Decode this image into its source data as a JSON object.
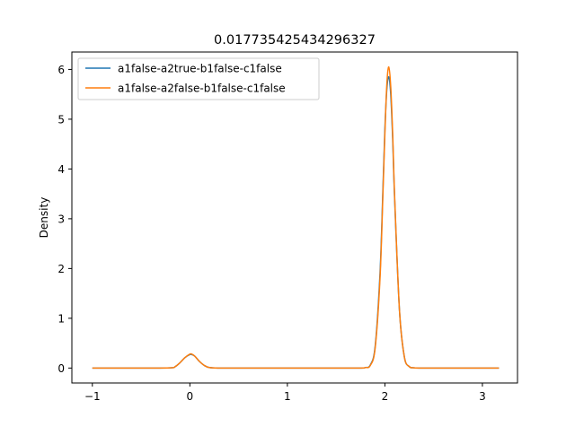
{
  "chart_data": {
    "type": "line",
    "title": "0.017735425434296327",
    "xlabel": "",
    "ylabel": "Density",
    "xlim": [
      -1.21,
      3.36
    ],
    "ylim": [
      -0.3,
      6.35
    ],
    "x_ticks": [
      -1,
      0,
      1,
      2,
      3
    ],
    "x_tick_labels": [
      "−1",
      "0",
      "1",
      "2",
      "3"
    ],
    "y_ticks": [
      0,
      1,
      2,
      3,
      4,
      5,
      6
    ],
    "y_tick_labels": [
      "0",
      "1",
      "2",
      "3",
      "4",
      "5",
      "6"
    ],
    "grid": false,
    "legend_position": "top-left",
    "series": [
      {
        "name": "a1false-a2true-b1false-c1false",
        "color": "#1f77b4",
        "x": [
          -1.0,
          -0.5,
          -0.2,
          -0.15,
          -0.1,
          -0.05,
          0.0,
          0.02,
          0.05,
          0.1,
          0.15,
          0.2,
          0.3,
          0.5,
          1.0,
          1.5,
          1.75,
          1.8,
          1.85,
          1.9,
          1.95,
          1.98,
          2.0,
          2.02,
          2.04,
          2.06,
          2.08,
          2.1,
          2.15,
          2.2,
          2.25,
          2.3,
          2.4,
          2.6,
          3.0,
          3.17
        ],
        "density": [
          0.0,
          0.0,
          0.005,
          0.03,
          0.11,
          0.21,
          0.27,
          0.27,
          0.24,
          0.13,
          0.05,
          0.01,
          0.0,
          0.0,
          0.0,
          0.0,
          0.0,
          0.01,
          0.06,
          0.43,
          1.9,
          3.6,
          4.8,
          5.6,
          5.85,
          5.5,
          4.6,
          3.4,
          1.15,
          0.22,
          0.03,
          0.005,
          0.0,
          0.0,
          0.0,
          0.0
        ]
      },
      {
        "name": "a1false-a2false-b1false-c1false",
        "color": "#ff7f0e",
        "x": [
          -1.0,
          -0.5,
          -0.2,
          -0.15,
          -0.1,
          -0.05,
          0.0,
          0.02,
          0.05,
          0.1,
          0.15,
          0.2,
          0.3,
          0.5,
          1.0,
          1.5,
          1.75,
          1.8,
          1.85,
          1.9,
          1.95,
          1.98,
          2.0,
          2.02,
          2.04,
          2.06,
          2.08,
          2.1,
          2.15,
          2.2,
          2.25,
          2.3,
          2.4,
          2.6,
          3.0,
          3.17
        ],
        "density": [
          0.0,
          0.0,
          0.005,
          0.03,
          0.11,
          0.21,
          0.28,
          0.28,
          0.24,
          0.13,
          0.05,
          0.01,
          0.0,
          0.0,
          0.0,
          0.0,
          0.0,
          0.01,
          0.05,
          0.4,
          1.8,
          3.5,
          4.7,
          5.7,
          6.05,
          5.65,
          4.7,
          3.45,
          1.15,
          0.22,
          0.03,
          0.005,
          0.0,
          0.0,
          0.0,
          0.0
        ]
      }
    ]
  }
}
